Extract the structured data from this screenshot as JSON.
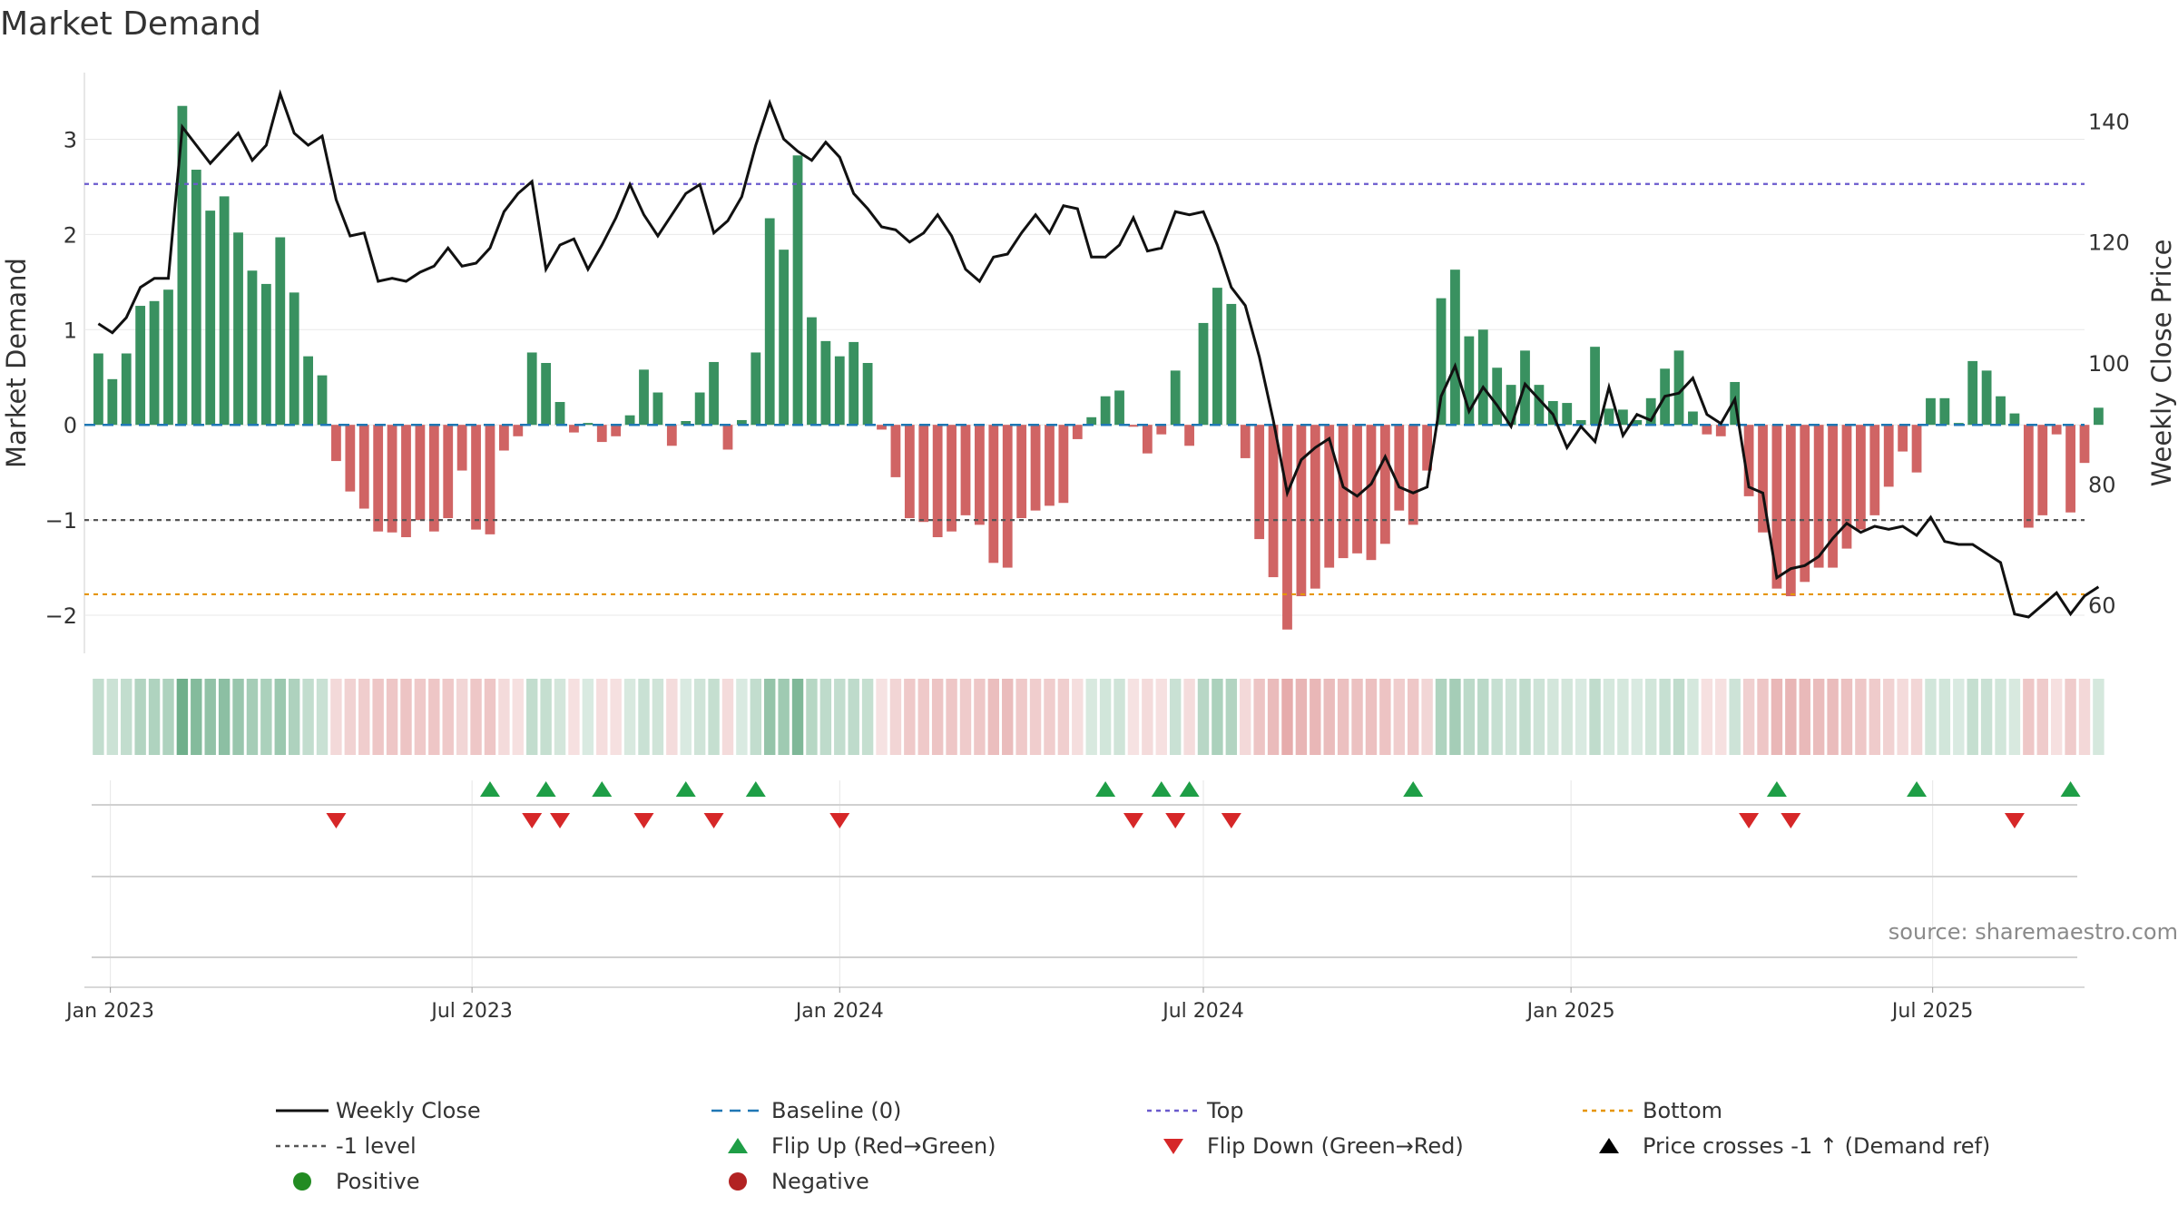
{
  "chart_data": {
    "type": "bar",
    "title": "Market Demand",
    "ylabel": "Market Demand",
    "y2label": "Weekly Close Price",
    "ylim": [
      -2.4,
      3.7
    ],
    "y2lim": [
      52,
      148
    ],
    "yticks": [
      -2,
      -1,
      0,
      1,
      2,
      3
    ],
    "yticklabels": [
      "−2",
      "−1",
      "0",
      "1",
      "2",
      "3"
    ],
    "y2ticks": [
      60,
      80,
      100,
      120,
      140
    ],
    "xlim": [
      "2022-12-19",
      "2025-09-15"
    ],
    "xticks": [
      "2023-01-01",
      "2023-07-01",
      "2024-01-01",
      "2024-07-01",
      "2025-01-01",
      "2025-07-01"
    ],
    "xticklabels": [
      "Jan 2023",
      "Jul 2023",
      "Jan 2024",
      "Jul 2024",
      "Jan 2025",
      "Jul 2025"
    ],
    "top_level": 2.53,
    "bottom_level": -1.78,
    "minus_one_level": -1,
    "grid": true,
    "colors": {
      "positive": "#2e8b57",
      "negative": "#cd5c5c",
      "price": "#111111",
      "top": "#6a5acd",
      "bottom": "#e69500",
      "baseline": "#1f77b4",
      "minus_one": "#555555",
      "flip_up": "#1e9e46",
      "flip_down": "#d62728",
      "positive_dot": "#228b22",
      "negative_dot": "#b22222"
    },
    "start_date": "2022-12-26",
    "series": [
      {
        "name": "Market Demand",
        "values": [
          0.75,
          0.48,
          0.75,
          1.25,
          1.3,
          1.42,
          3.35,
          2.68,
          2.25,
          2.4,
          2.02,
          1.62,
          1.48,
          1.97,
          1.39,
          0.72,
          0.52,
          -0.38,
          -0.7,
          -0.88,
          -1.12,
          -1.13,
          -1.18,
          -1.0,
          -1.12,
          -0.98,
          -0.48,
          -1.1,
          -1.15,
          -0.27,
          -0.12,
          0.76,
          0.65,
          0.24,
          -0.08,
          0.02,
          -0.18,
          -0.12,
          0.1,
          0.58,
          0.34,
          -0.22,
          0.04,
          0.34,
          0.66,
          -0.26,
          0.05,
          0.76,
          2.17,
          1.84,
          2.83,
          1.13,
          0.88,
          0.72,
          0.87,
          0.65,
          -0.05,
          -0.55,
          -0.98,
          -1.02,
          -1.18,
          -1.12,
          -0.95,
          -1.05,
          -1.45,
          -1.5,
          -0.98,
          -0.9,
          -0.85,
          -0.82,
          -0.15,
          0.08,
          0.3,
          0.36,
          -0.02,
          -0.3,
          -0.1,
          0.57,
          -0.22,
          1.07,
          1.44,
          1.27,
          -0.35,
          -1.2,
          -1.6,
          -2.15,
          -1.8,
          -1.72,
          -1.5,
          -1.4,
          -1.35,
          -1.42,
          -1.25,
          -0.9,
          -1.05,
          -0.48,
          1.33,
          1.63,
          0.93,
          1.0,
          0.6,
          0.42,
          0.78,
          0.42,
          0.25,
          0.23,
          0.05,
          0.82,
          0.17,
          0.16,
          0.05,
          0.28,
          0.59,
          0.78,
          0.14,
          -0.1,
          -0.12,
          0.45,
          -0.75,
          -1.13,
          -1.72,
          -1.8,
          -1.65,
          -1.5,
          -1.5,
          -1.3,
          -1.1,
          -0.95,
          -0.65,
          -0.28,
          -0.5,
          0.28,
          0.28,
          0.02,
          0.67,
          0.57,
          0.3,
          0.12,
          -1.08,
          -0.95,
          -0.1,
          -0.92,
          -0.4,
          0.18
        ]
      },
      {
        "name": "Weekly Close",
        "values": [
          106.5,
          105,
          107.5,
          112.5,
          114,
          114,
          139,
          136,
          133,
          135.5,
          138,
          133.5,
          136,
          144.5,
          138,
          136,
          137.5,
          127,
          121,
          121.5,
          113.5,
          114,
          113.5,
          115,
          116,
          119,
          116,
          116.5,
          119,
          125,
          128,
          130,
          115.5,
          119.5,
          120.5,
          115.5,
          119.5,
          124,
          129.5,
          124.5,
          121,
          124.5,
          128,
          129.5,
          121.5,
          123.5,
          127.5,
          136,
          143,
          137,
          135,
          133.5,
          136.5,
          134,
          128,
          125.5,
          122.5,
          122,
          120,
          121.5,
          124.5,
          121,
          115.5,
          113.5,
          117.5,
          118,
          121.5,
          124.5,
          121.5,
          126,
          125.5,
          117.5,
          117.5,
          119.5,
          124,
          118.5,
          119,
          125,
          124.5,
          125,
          119.5,
          112.5,
          109.5,
          101,
          90.5,
          78.5,
          84,
          86,
          87.5,
          79.5,
          78,
          80,
          84.5,
          79.5,
          78.5,
          79.5,
          94.5,
          99.5,
          92,
          96,
          93,
          89.5,
          96.5,
          94,
          91.5,
          86,
          89.5,
          87,
          96,
          88,
          91.5,
          90.5,
          94.5,
          95,
          97.5,
          91.5,
          90,
          94,
          79.5,
          78.5,
          64.5,
          66,
          66.5,
          68,
          71,
          73.5,
          72,
          73,
          72.5,
          73,
          71.5,
          74.5,
          70.5,
          70,
          70,
          68.5,
          67,
          58.5,
          58,
          60,
          62,
          58.5,
          61.5,
          63
        ]
      }
    ],
    "heat_strip": {
      "note_levels": "per-week shade intensity follows the Market Demand value"
    },
    "flips_up": [
      "2023-07-10",
      "2023-08-07",
      "2023-09-04",
      "2023-10-16",
      "2023-11-20",
      "2024-05-13",
      "2024-06-10",
      "2024-06-24",
      "2024-10-14",
      "2025-04-14",
      "2025-06-23",
      "2025-09-08"
    ],
    "flips_down": [
      "2023-04-24",
      "2023-07-31",
      "2023-08-14",
      "2023-09-25",
      "2023-10-30",
      "2024-01-01",
      "2024-05-27",
      "2024-06-17",
      "2024-07-15",
      "2025-03-31",
      "2025-04-21",
      "2025-08-11"
    ]
  },
  "legend": {
    "items": [
      {
        "label": "Weekly Close",
        "key": "line-black"
      },
      {
        "label": "Baseline (0)",
        "key": "dash-blue"
      },
      {
        "label": "Top",
        "key": "dot-purple"
      },
      {
        "label": "Bottom",
        "key": "dot-orange"
      },
      {
        "label": "-1 level",
        "key": "dot-grey"
      },
      {
        "label": "Flip Up (Red→Green)",
        "key": "tri-up-green"
      },
      {
        "label": "Flip Down (Green→Red)",
        "key": "tri-down-red"
      },
      {
        "label": "Price crosses -1 ↑ (Demand ref)",
        "key": "tri-up-black"
      },
      {
        "label": "Positive",
        "key": "dot-green"
      },
      {
        "label": "Negative",
        "key": "dot-red"
      }
    ]
  },
  "source": "source: sharemaestro.com"
}
